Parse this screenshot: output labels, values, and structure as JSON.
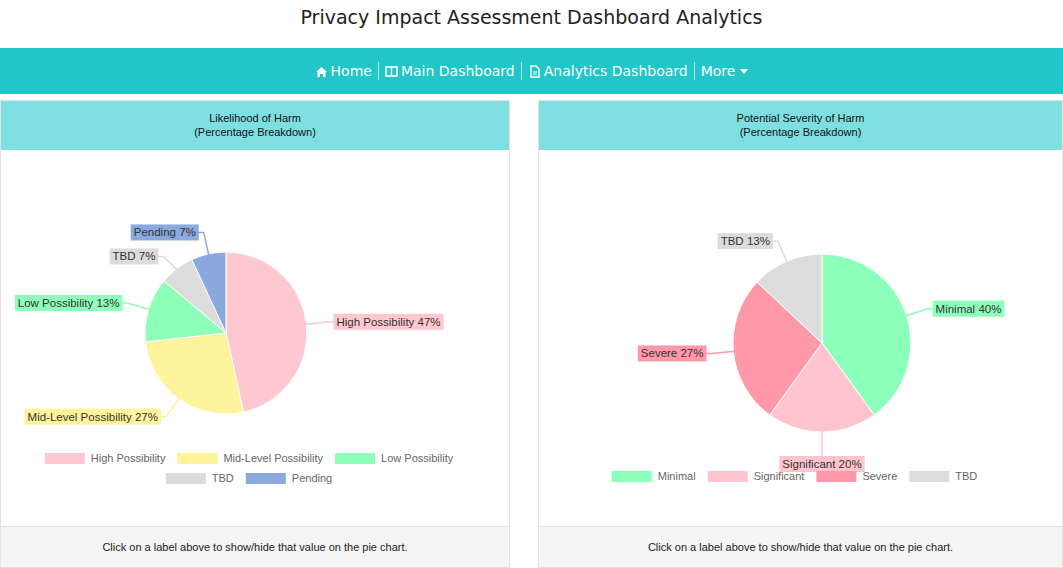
{
  "page": {
    "title": "Privacy Impact Assessment Dashboard Analytics",
    "nav": [
      "Home",
      "Main Dashboard",
      "Analytics Dashboard",
      "More"
    ]
  },
  "chart_data": [
    {
      "type": "pie",
      "title": "Likelihood of Harm",
      "subtitle": "(Percentage Breakdown)",
      "categories": [
        "High Possibility",
        "Mid-Level Possibility",
        "Low Possibility",
        "TBD",
        "Pending"
      ],
      "values": [
        47,
        27,
        13,
        7,
        7
      ],
      "value_labels": [
        "47%",
        "27%",
        "13%",
        "7%",
        "7%"
      ],
      "colors": [
        "#ffc8d0",
        "#fff39b",
        "#8effb9",
        "#dcdcdc",
        "#8aa9df"
      ],
      "data_labels": true,
      "legend": "bottom",
      "caption": "Click on a label above to show/hide that value on the pie chart."
    },
    {
      "type": "pie",
      "title": "Potential Severity of Harm",
      "subtitle": "(Percentage Breakdown)",
      "categories": [
        "Minimal",
        "Significant",
        "Severe",
        "TBD"
      ],
      "values": [
        40,
        20,
        27,
        13
      ],
      "value_labels": [
        "40%",
        "20%",
        "27%",
        "13%"
      ],
      "colors": [
        "#8cffbb",
        "#ffc4ce",
        "#ff99a9",
        "#dcdcdc"
      ],
      "data_labels": true,
      "legend": "bottom",
      "caption": "Click on a label above to show/hide that value on the pie chart."
    }
  ]
}
